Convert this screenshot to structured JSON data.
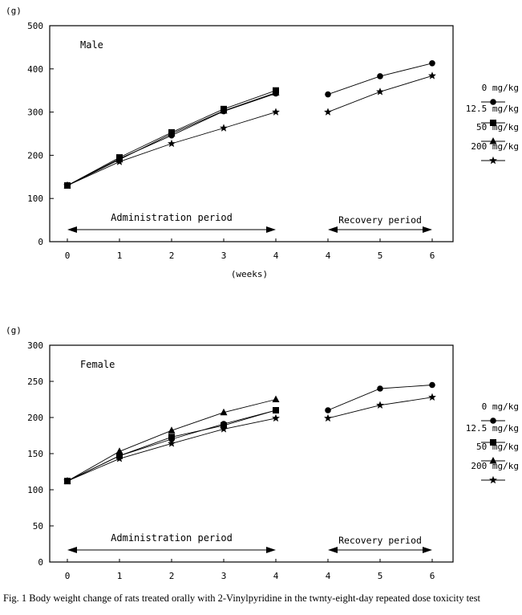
{
  "chart_data": [
    {
      "type": "line",
      "title": "Male",
      "ylabel": "(g)",
      "xlabel": "(weeks)",
      "ylim": [
        0,
        500
      ],
      "yticks": [
        0,
        100,
        200,
        300,
        400,
        500
      ],
      "x_labels": [
        "0",
        "1",
        "2",
        "3",
        "4",
        "4",
        "5",
        "6"
      ],
      "annotations": {
        "admin": "Administration period",
        "recovery": "Recovery period"
      },
      "series": [
        {
          "name": "0 mg/kg",
          "marker": "circle",
          "admin": [
            130,
            192,
            246,
            302,
            343
          ],
          "recovery": [
            341,
            383,
            413
          ]
        },
        {
          "name": "12.5 mg/kg",
          "marker": "square",
          "admin": [
            130,
            195,
            253,
            307,
            350
          ],
          "recovery": null
        },
        {
          "name": "50 mg/kg",
          "marker": "triangle",
          "admin": [
            130,
            190,
            250,
            303,
            345
          ],
          "recovery": null
        },
        {
          "name": "200 mg/kg",
          "marker": "star",
          "admin": [
            130,
            185,
            227,
            263,
            300
          ],
          "recovery": [
            300,
            347,
            384
          ]
        }
      ]
    },
    {
      "type": "line",
      "title": "Female",
      "ylabel": "(g)",
      "xlabel": "",
      "ylim": [
        0,
        300
      ],
      "yticks": [
        0,
        50,
        100,
        150,
        200,
        250,
        300
      ],
      "x_labels": [
        "0",
        "1",
        "2",
        "3",
        "4",
        "4",
        "5",
        "6"
      ],
      "annotations": {
        "admin": "Administration period",
        "recovery": "Recovery period"
      },
      "series": [
        {
          "name": "0 mg/kg",
          "marker": "circle",
          "admin": [
            112,
            147,
            170,
            191,
            210
          ],
          "recovery": [
            210,
            240,
            245
          ]
        },
        {
          "name": "12.5 mg/kg",
          "marker": "square",
          "admin": [
            112,
            147,
            173,
            189,
            210
          ],
          "recovery": null
        },
        {
          "name": "50 mg/kg",
          "marker": "triangle",
          "admin": [
            112,
            153,
            182,
            207,
            225
          ],
          "recovery": null
        },
        {
          "name": "200 mg/kg",
          "marker": "star",
          "admin": [
            112,
            143,
            164,
            184,
            199
          ],
          "recovery": [
            199,
            217,
            228
          ]
        }
      ]
    }
  ],
  "caption": "Fig. 1  Body weight change of rats treated orally with 2-Vinylpyridine in the twnty-eight-day repeated dose toxicity test"
}
